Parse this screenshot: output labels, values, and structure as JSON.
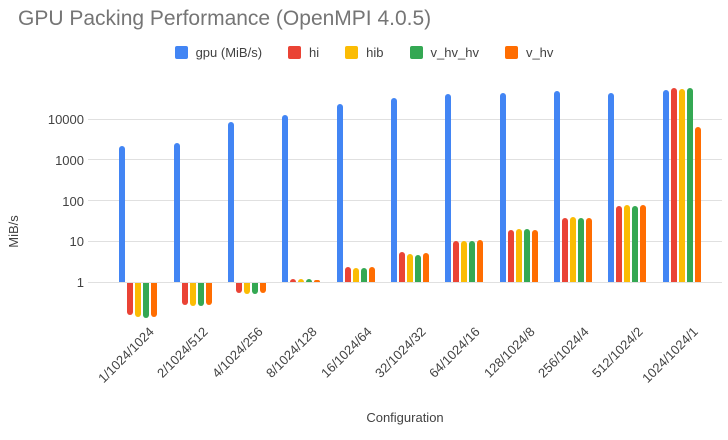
{
  "page": {
    "background": "#ffffff"
  },
  "colors": {
    "title_text": "#757575",
    "axis_text": "#424242",
    "gridline": "#e0e0e0"
  },
  "chart_data": {
    "type": "bar",
    "scale": "log-y",
    "title": "GPU Packing Performance (OpenMPI 4.0.5)",
    "xlabel": "Configuration",
    "ylabel": "MiB/s",
    "yticks": [
      1,
      10,
      100,
      1000,
      10000
    ],
    "ylim": [
      0.1,
      60000
    ],
    "grid": true,
    "legend_position": "top",
    "baseline": 1,
    "categories": [
      "1/1024/1024",
      "2/1024/512",
      "4/1024/256",
      "8/1024/128",
      "16/1024/64",
      "32/1024/32",
      "64/1024/16",
      "128/1024/8",
      "256/1024/4",
      "512/1024/2",
      "1024/1024/1"
    ],
    "series": [
      {
        "name": "gpu (MiB/s)",
        "color": "#4285F4",
        "values": [
          2200,
          2600,
          8500,
          13000,
          23000,
          33000,
          41000,
          44000,
          48000,
          45000,
          53000
        ]
      },
      {
        "name": "hi",
        "color": "#EA4335",
        "values": [
          0.16,
          0.29,
          0.58,
          1.2,
          2.4,
          5.5,
          10.3,
          19,
          37,
          72,
          59000
        ]
      },
      {
        "name": "hib",
        "color": "#FBBC04",
        "values": [
          0.15,
          0.28,
          0.54,
          1.2,
          2.2,
          5.0,
          10.3,
          20,
          39,
          76,
          55000
        ]
      },
      {
        "name": "v_hv_hv",
        "color": "#34A853",
        "values": [
          0.14,
          0.28,
          0.54,
          1.2,
          2.2,
          4.5,
          10.3,
          20,
          38,
          73,
          59000
        ]
      },
      {
        "name": "v_hv",
        "color": "#FF6D01",
        "values": [
          0.15,
          0.29,
          0.58,
          1.1,
          2.4,
          5.3,
          10.5,
          19,
          38,
          77,
          6600
        ]
      }
    ]
  }
}
